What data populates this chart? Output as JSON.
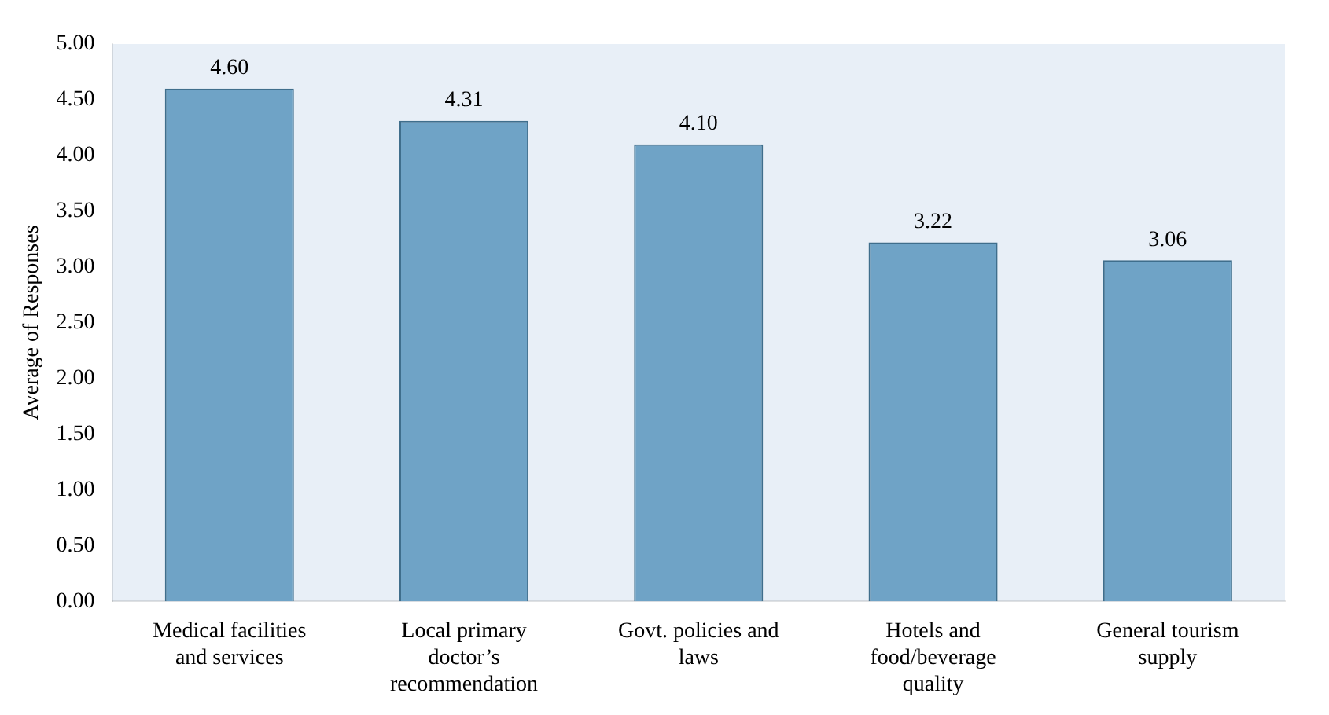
{
  "chart_data": {
    "type": "bar",
    "ylabel": "Average of Responses",
    "categories": [
      "Medical facilities and services",
      "Local primary doctor’s recommendation",
      "Govt. policies and laws",
      "Hotels and food/beverage quality",
      "General tourism supply"
    ],
    "values": [
      4.6,
      4.31,
      4.1,
      3.22,
      3.06
    ],
    "value_labels": [
      "4.60",
      "4.31",
      "4.10",
      "3.22",
      "3.06"
    ],
    "color": "#6fa3c6",
    "ylim": [
      0,
      5
    ],
    "yticks": [
      {
        "value": 0,
        "label": "0.00"
      },
      {
        "value": 0.5,
        "label": "0.50"
      },
      {
        "value": 1,
        "label": "1.00"
      },
      {
        "value": 1.5,
        "label": "1.50"
      },
      {
        "value": 2,
        "label": "2.00"
      },
      {
        "value": 2.5,
        "label": "2.50"
      },
      {
        "value": 3,
        "label": "3.00"
      },
      {
        "value": 3.5,
        "label": "3.50"
      },
      {
        "value": 4,
        "label": "4.00"
      },
      {
        "value": 4.5,
        "label": "4.50"
      },
      {
        "value": 5,
        "label": "5.00"
      }
    ],
    "grid": false,
    "legend": false
  }
}
